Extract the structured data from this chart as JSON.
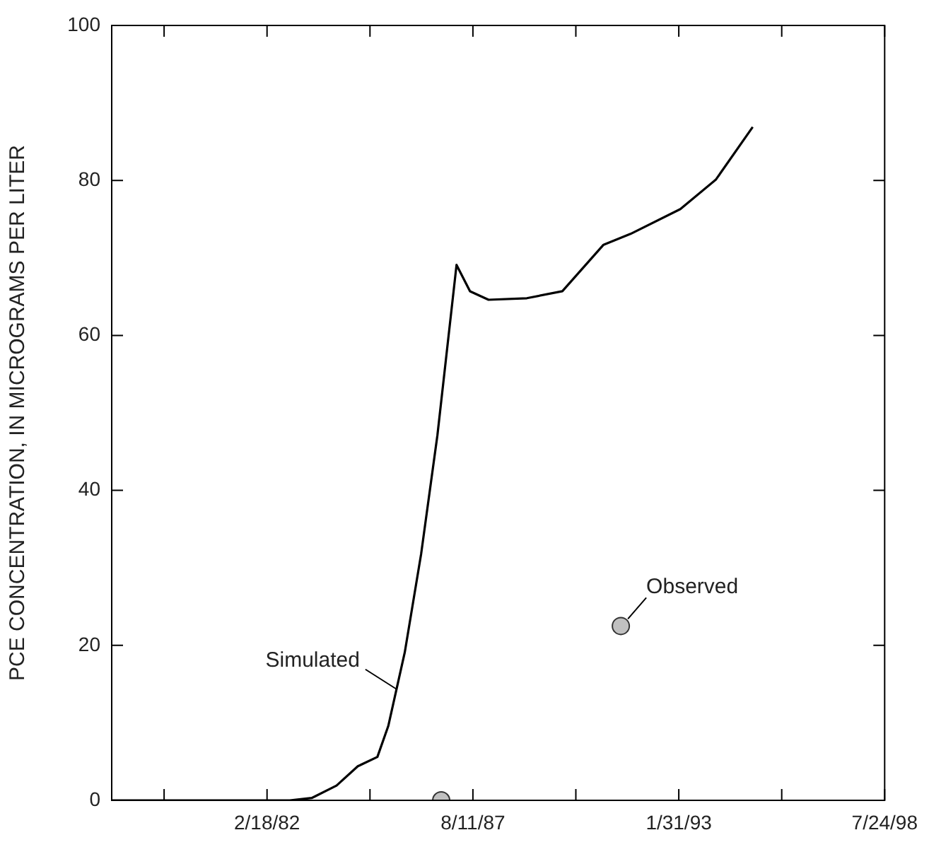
{
  "chart_data": {
    "type": "line",
    "ylabel": "PCE CONCENTRATION, IN MICROGRAMS PER LITER",
    "xlim": [
      "1978-01-01",
      "1998-07-24"
    ],
    "xticks": [
      {
        "value": "1979-05-25",
        "label": null
      },
      {
        "value": "1982-02-18",
        "label": "2/18/82"
      },
      {
        "value": "1984-11-14",
        "label": null
      },
      {
        "value": "1987-08-11",
        "label": "8/11/87"
      },
      {
        "value": "1990-05-07",
        "label": null
      },
      {
        "value": "1993-01-31",
        "label": "1/31/93"
      },
      {
        "value": "1995-10-28",
        "label": null
      },
      {
        "value": "1998-07-24",
        "label": "7/24/98"
      }
    ],
    "ylim": [
      0,
      100
    ],
    "yticks": [
      0,
      20,
      40,
      60,
      80,
      100
    ],
    "grid": false,
    "legend": false,
    "series": [
      {
        "name": "Simulated",
        "type": "line",
        "color": "#000000",
        "marker": "none",
        "x": [
          "1978-01-01",
          "1982-09-27",
          "1983-04-28",
          "1983-12-25",
          "1984-07-19",
          "1985-01-25",
          "1985-05-11",
          "1985-10-18",
          "1986-03-26",
          "1986-08-31",
          "1987-03-05",
          "1987-07-14",
          "1988-01-10",
          "1989-01-16",
          "1989-12-27",
          "1991-01-31",
          "1991-10-20",
          "1993-02-15",
          "1994-01-26",
          "1995-01-19"
        ],
        "values": [
          0,
          0,
          0.3,
          1.9,
          4.4,
          5.6,
          9.6,
          19.1,
          31.8,
          47.1,
          69.1,
          65.7,
          64.6,
          64.8,
          65.7,
          71.7,
          73.1,
          76.3,
          80.1,
          86.9
        ]
      },
      {
        "name": "Observed",
        "type": "scatter",
        "color": "#c0c0c0",
        "marker": "circle",
        "x": [
          "1986-10-07",
          "1991-07-18"
        ],
        "values": [
          0,
          22.5
        ]
      }
    ]
  }
}
